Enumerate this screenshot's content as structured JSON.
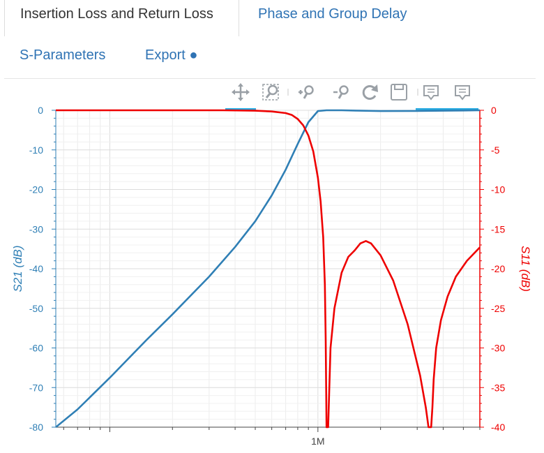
{
  "tabs": {
    "top": [
      {
        "label": "Insertion Loss and Return Loss",
        "active": true
      },
      {
        "label": "Phase and Group Delay",
        "active": false
      }
    ],
    "second": [
      {
        "label": "S-Parameters"
      },
      {
        "label": "Export ●"
      }
    ]
  },
  "toolbar": {
    "tools": [
      "pan-icon",
      "box-zoom-icon",
      "zoom-in-icon",
      "zoom-out-icon",
      "reset-icon",
      "save-icon",
      "hover-icon",
      "hover-icon-2"
    ]
  },
  "chart_data": {
    "type": "line",
    "x_scale": "log",
    "x_tick_labels": [
      "1M"
    ],
    "left_axis": {
      "label": "S21 (dB)",
      "range": [
        -80,
        0
      ],
      "ticks": [
        0,
        -10,
        -20,
        -30,
        -40,
        -50,
        -60,
        -70,
        -80
      ],
      "color": "#2f7fb5"
    },
    "right_axis": {
      "label": "S11 (dB)",
      "range": [
        -40,
        0
      ],
      "ticks": [
        0,
        -5,
        -10,
        -15,
        -20,
        -25,
        -30,
        -35,
        -40
      ],
      "color": "#ee0000"
    },
    "series": [
      {
        "axis": "left",
        "color": "#2f7fb5",
        "x": [
          55000,
          70000,
          100000,
          150000,
          200000,
          300000,
          400000,
          500000,
          600000,
          700000,
          800000,
          900000,
          1000000,
          1100000,
          1300000,
          1600000,
          2000000,
          3000000,
          5000000,
          6000000
        ],
        "values": [
          -80,
          -75.5,
          -67.5,
          -58,
          -51.5,
          -42,
          -34.5,
          -28,
          -21.5,
          -15,
          -8.5,
          -3,
          -0.2,
          0,
          0,
          -0.1,
          -0.2,
          -0.15,
          -0.05,
          0
        ]
      },
      {
        "axis": "right",
        "color": "#ee0000",
        "x": [
          55000,
          200000,
          350000,
          500000,
          600000,
          700000,
          750000,
          800000,
          850000,
          900000,
          950000,
          1000000,
          1030000,
          1060000,
          1080000,
          1090000,
          1100000,
          1120000,
          1150000,
          1200000,
          1300000,
          1400000,
          1500000,
          1600000,
          1700000,
          1800000,
          2000000,
          2300000,
          2700000,
          3100000,
          3300000,
          3400000,
          3450000,
          3500000,
          3550000,
          3600000,
          3700000,
          3900000,
          4200000,
          4600000,
          5200000,
          6000000
        ],
        "values": [
          0,
          0,
          0,
          -0.05,
          -0.15,
          -0.35,
          -0.6,
          -1.1,
          -1.9,
          -3.2,
          -5.2,
          -8.5,
          -11.5,
          -16,
          -22,
          -29,
          -40,
          -40,
          -30,
          -25,
          -20.5,
          -18.5,
          -17.7,
          -16.8,
          -16.5,
          -16.8,
          -18.3,
          -21.5,
          -27,
          -33.5,
          -37.5,
          -40,
          -40,
          -40,
          -37.5,
          -34,
          -30,
          -26.5,
          -23.5,
          -21,
          -19,
          -17.3
        ]
      }
    ]
  }
}
